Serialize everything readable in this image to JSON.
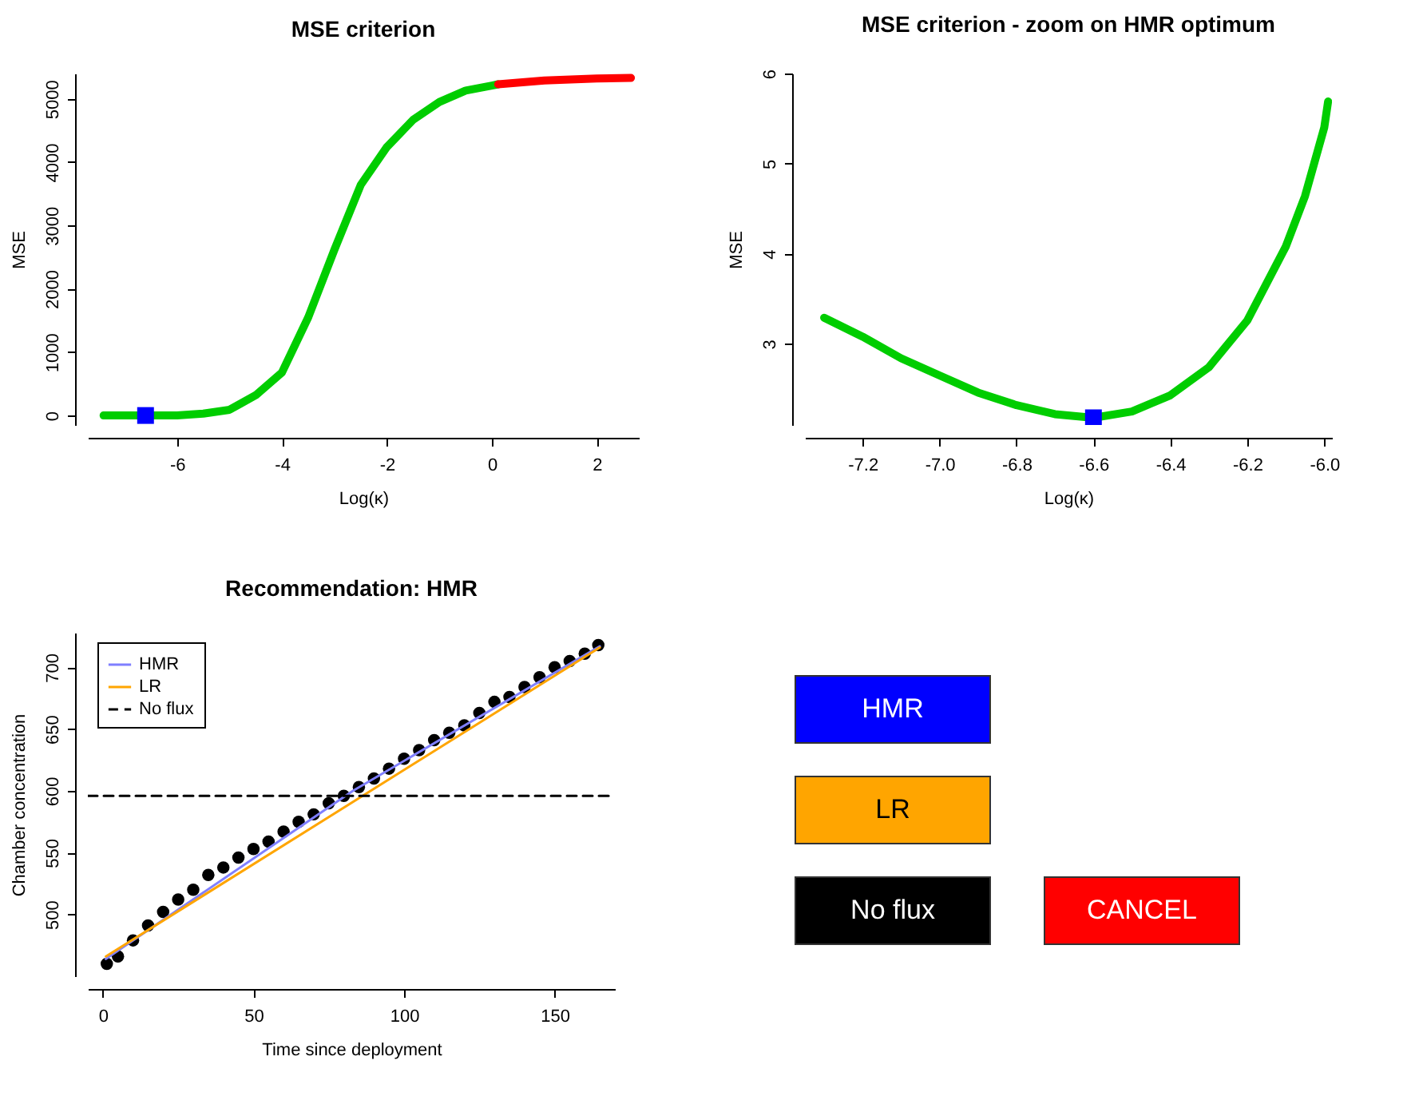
{
  "chart_data": [
    {
      "type": "line",
      "title": "MSE criterion",
      "xlabel": "Log(κ)",
      "ylabel": "MSE",
      "xlim": [
        -7.7,
        2.8
      ],
      "ylim": [
        -150,
        5400
      ],
      "xticks": [
        -6,
        -4,
        -2,
        0,
        2
      ],
      "yticks": [
        0,
        1000,
        2000,
        3000,
        4000,
        5000
      ],
      "series": [
        {
          "color": "#00cd00",
          "x": [
            -7.4,
            -6.6,
            -6,
            -5.5,
            -5,
            -4.5,
            -4,
            -3.5,
            -3,
            -2.5,
            -2,
            -1.5,
            -1,
            -0.5,
            0,
            0.12
          ],
          "values": [
            0,
            0,
            0,
            30,
            90,
            320,
            680,
            1550,
            2620,
            3640,
            4240,
            4670,
            4950,
            5130,
            5210,
            5230
          ]
        },
        {
          "color": "#ff0000",
          "x": [
            0.12,
            1,
            2,
            2.65
          ],
          "values": [
            5230,
            5290,
            5320,
            5330
          ]
        },
        {
          "type": "scatter",
          "marker": "square",
          "color": "#0000ff",
          "x": [
            -6.6
          ],
          "values": [
            0
          ]
        }
      ]
    },
    {
      "type": "line",
      "title": "MSE criterion - zoom on HMR optimum",
      "xlabel": "Log(κ)",
      "ylabel": "MSE",
      "xlim": [
        -7.35,
        -5.98
      ],
      "ylim": [
        2.1,
        6
      ],
      "xticks": [
        {
          "value": -7.2,
          "label": "-7.2"
        },
        {
          "value": -7,
          "label": "-7.0"
        },
        {
          "value": -6.8,
          "label": "-6.8"
        },
        {
          "value": -6.6,
          "label": "-6.6"
        },
        {
          "value": -6.4,
          "label": "-6.4"
        },
        {
          "value": -6.2,
          "label": "-6.2"
        },
        {
          "value": -6,
          "label": "-6.0"
        }
      ],
      "yticks": [
        3,
        4,
        5,
        6
      ],
      "series": [
        {
          "color": "#00cd00",
          "x": [
            -7.3,
            -7.2,
            -7.1,
            -7,
            -6.9,
            -6.8,
            -6.7,
            -6.6,
            -6.5,
            -6.4,
            -6.3,
            -6.2,
            -6.15,
            -6.1,
            -6.05,
            -6,
            -5.99
          ],
          "values": [
            3.29,
            3.08,
            2.84,
            2.65,
            2.46,
            2.32,
            2.22,
            2.18,
            2.25,
            2.43,
            2.74,
            3.26,
            3.67,
            4.08,
            4.64,
            5.4,
            5.69
          ]
        },
        {
          "type": "scatter",
          "marker": "square",
          "color": "#0000ff",
          "x": [
            -6.6
          ],
          "values": [
            2.18
          ]
        }
      ]
    },
    {
      "type": "line",
      "title": "Recommendation: HMR",
      "xlabel": "Time since deployment",
      "ylabel": "Chamber concentration",
      "xlim": [
        -5,
        170
      ],
      "ylim": [
        450,
        728
      ],
      "xticks": [
        0,
        50,
        100,
        150
      ],
      "yticks": [
        500,
        550,
        600,
        650,
        700
      ],
      "legend": "top left",
      "series": [
        {
          "type": "scatter",
          "marker": "circle",
          "color": "#000000",
          "x": [
            1.3,
            5,
            10,
            15,
            20,
            25,
            30,
            35,
            40,
            45,
            50,
            55,
            60,
            65,
            70,
            75,
            80,
            85,
            90,
            95,
            100,
            105,
            110,
            115,
            120,
            125,
            130,
            135,
            140,
            145,
            150,
            155,
            160,
            164.5
          ],
          "values": [
            460,
            466,
            479,
            491,
            502,
            512,
            520,
            532,
            538,
            546,
            553,
            559,
            567,
            575,
            581,
            590,
            596,
            603,
            610,
            618,
            626,
            633,
            641,
            647,
            653,
            663,
            672,
            676,
            684,
            692,
            700,
            705,
            711,
            718
          ]
        },
        {
          "name": "HMR",
          "color": "#7f7fff",
          "x": [
            1,
            83,
            165
          ],
          "values": [
            464,
            600,
            717
          ]
        },
        {
          "name": "LR",
          "color": "#ffa500",
          "x": [
            1,
            165
          ],
          "values": [
            466,
            716
          ]
        },
        {
          "name": "No flux",
          "color": "#000000",
          "line_style": "dashed",
          "x": [
            -5,
            170
          ],
          "values": [
            596,
            596
          ]
        }
      ]
    },
    {
      "type": "other",
      "categories": [
        "HMR",
        "LR",
        "No flux",
        "CANCEL"
      ],
      "colors": [
        "#0000ff",
        "#ffa500",
        "#000000",
        "#ff0000"
      ]
    }
  ]
}
